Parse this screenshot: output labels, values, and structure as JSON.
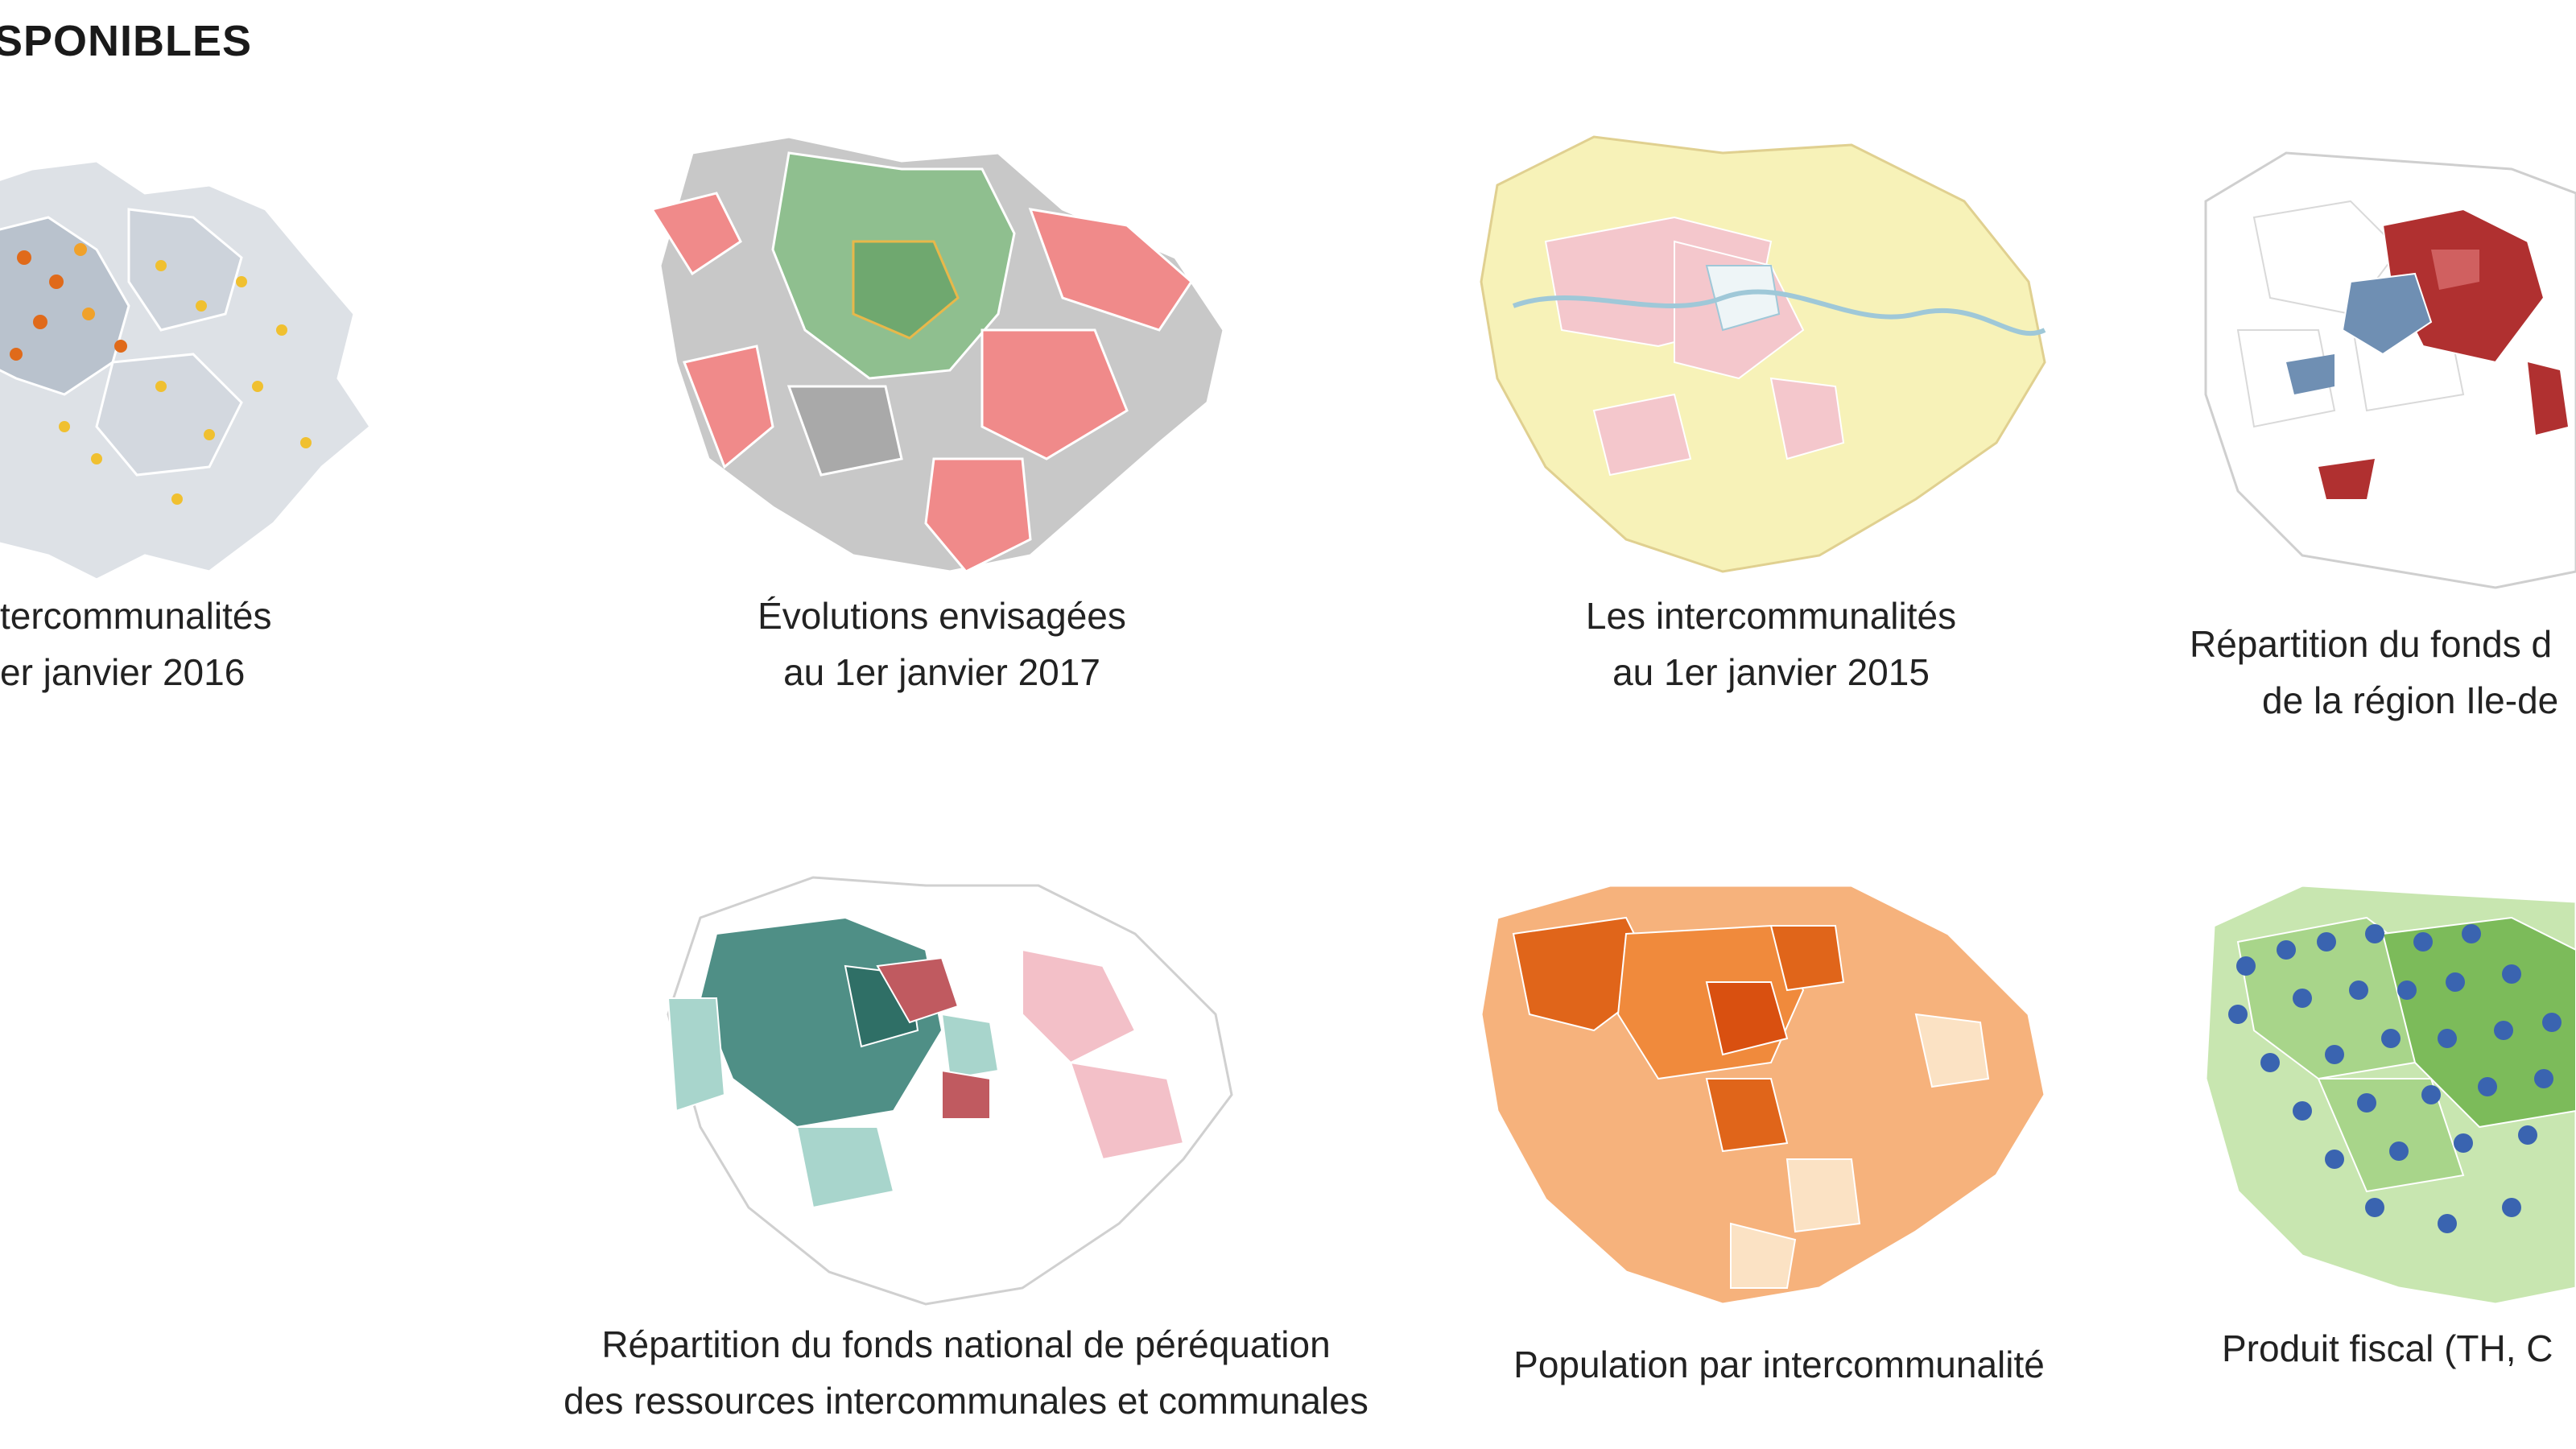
{
  "section": {
    "heading": "SPONIBLES"
  },
  "maps": [
    {
      "id": "map-2016",
      "lines": [
        "tercommunalités",
        "er janvier 2016"
      ],
      "style": "grey-dots",
      "colors": [
        "#d9dde3",
        "#b8c0cb",
        "#f0a12a",
        "#e06a1a"
      ]
    },
    {
      "id": "map-2017",
      "lines": [
        "Évolutions envisagées",
        "au 1er janvier 2017"
      ],
      "style": "green-red",
      "colors": [
        "#8fbf8f",
        "#f08a8a",
        "#c8c8c8",
        "#a9a9a9"
      ]
    },
    {
      "id": "map-2015",
      "lines": [
        "Les intercommunalités",
        "au 1er janvier 2015"
      ],
      "style": "yellow-pink",
      "colors": [
        "#f7f2b8",
        "#f4c7cc",
        "#9fc8d8",
        "#e8d8a0"
      ]
    },
    {
      "id": "map-fonds-region",
      "lines": [
        "Répartition du fonds d",
        "de la région Ile-de"
      ],
      "style": "white-red-blue",
      "colors": [
        "#ffffff",
        "#b03030",
        "#6f8fb3",
        "#d9d9d9"
      ]
    },
    {
      "id": "map-fonds-national",
      "lines": [
        "Répartition du fonds national de péréquation",
        "des ressources intercommunales et communales"
      ],
      "style": "teal-pink",
      "colors": [
        "#4f8f86",
        "#a8d5cc",
        "#f3c0c8",
        "#ffffff"
      ]
    },
    {
      "id": "map-population",
      "lines": [
        "Population par intercommunalité"
      ],
      "style": "orange",
      "colors": [
        "#f6b27c",
        "#f08a3c",
        "#e0651a",
        "#fbe2c4"
      ]
    },
    {
      "id": "map-produit-fiscal",
      "lines": [
        "Produit fiscal (TH, C"
      ],
      "style": "green-pies",
      "colors": [
        "#a8d58a",
        "#7cbb5a",
        "#3a64b0",
        "#c8e6b0"
      ]
    }
  ]
}
